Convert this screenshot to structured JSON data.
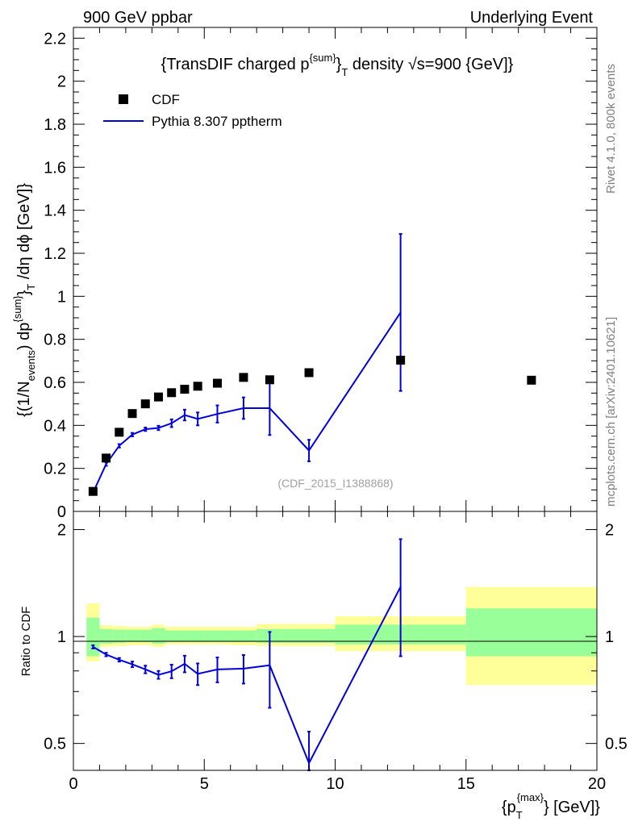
{
  "header": {
    "left": "900 GeV ppbar",
    "right": "Underlying Event"
  },
  "side_labels": {
    "rivet": "Rivet 4.1.0,  800k events",
    "mcplots": "mcplots.cern.ch [arXiv:2401.10621]"
  },
  "title": {
    "pre": "{TransDIF charged p",
    "sup": "{sum}",
    "mid": "}",
    "sub": "T",
    "post": " density √s=900 {GeV]}"
  },
  "watermark": "(CDF_2015_I1388868)",
  "legend": {
    "cdf": "CDF",
    "pythia": "Pythia 8.307 pptherm"
  },
  "y_main_label": {
    "a": "{(1/N",
    "a_sub": "events",
    "b": ") dp",
    "b_sup": "{sum}",
    "c": "}",
    "c_sub": "T",
    "d": " /dη  dϕ [GeV]}"
  },
  "y_ratio_label": "Ratio to CDF",
  "x_label": {
    "pre": "{p",
    "sub": "T",
    "sup": "{max}",
    "post": "} [GeV]}"
  },
  "chart_data": {
    "type": "scatter",
    "xlim": [
      0,
      20
    ],
    "main": {
      "ylim": [
        0,
        2.25
      ],
      "yticks": [
        0,
        0.2,
        0.4,
        0.6,
        0.8,
        1,
        1.2,
        1.4,
        1.6,
        1.8,
        2,
        2.2
      ],
      "ytick_labels": [
        "0",
        "0.2",
        "0.4",
        "0.6",
        "0.8",
        "1",
        "1.2",
        "1.4",
        "1.6",
        "1.8",
        "2",
        "2.2"
      ]
    },
    "ratio": {
      "ylim": [
        0.42,
        2.25
      ],
      "yticks": [
        0.5,
        1,
        2
      ],
      "ytick_labels": [
        "0.5",
        "1",
        "2"
      ]
    },
    "xticks": [
      0,
      5,
      10,
      15,
      20
    ],
    "xtick_labels": [
      "0",
      "5",
      "10",
      "15",
      "20"
    ],
    "series": [
      {
        "name": "CDF",
        "type": "markers",
        "color": "#000000",
        "x": [
          0.75,
          1.25,
          1.75,
          2.25,
          2.75,
          3.25,
          3.75,
          4.25,
          4.75,
          5.5,
          6.5,
          7.5,
          9.0,
          12.5,
          17.5
        ],
        "y": [
          0.093,
          0.248,
          0.368,
          0.455,
          0.5,
          0.532,
          0.552,
          0.568,
          0.582,
          0.596,
          0.623,
          0.612,
          0.645,
          0.703,
          0.61
        ]
      },
      {
        "name": "Pythia 8.307 pptherm",
        "type": "line",
        "color": "#0000dd",
        "x": [
          0.75,
          1.25,
          1.75,
          2.25,
          2.75,
          3.25,
          3.75,
          4.25,
          4.75,
          5.5,
          6.5,
          7.5,
          9.0,
          12.5
        ],
        "y": [
          0.087,
          0.22,
          0.305,
          0.357,
          0.382,
          0.388,
          0.41,
          0.448,
          0.43,
          0.453,
          0.48,
          0.48,
          0.283,
          0.925
        ],
        "yerr": [
          0.005,
          0.008,
          0.008,
          0.008,
          0.008,
          0.01,
          0.018,
          0.025,
          0.03,
          0.04,
          0.05,
          0.125,
          0.05,
          0.365
        ]
      }
    ],
    "ratio_series": {
      "name": "Pythia / CDF",
      "color": "#0000dd",
      "x": [
        0.75,
        1.25,
        1.75,
        2.25,
        2.75,
        3.25,
        3.75,
        4.25,
        4.75,
        5.5,
        6.5,
        7.5,
        9.0,
        12.5
      ],
      "y": [
        0.935,
        0.89,
        0.86,
        0.835,
        0.808,
        0.78,
        0.798,
        0.838,
        0.785,
        0.808,
        0.812,
        0.83,
        0.44,
        1.38
      ],
      "yerr": [
        0.01,
        0.01,
        0.01,
        0.015,
        0.02,
        0.02,
        0.035,
        0.045,
        0.055,
        0.065,
        0.075,
        0.2,
        0.1,
        0.5
      ]
    },
    "bands": [
      {
        "x": [
          0.5,
          1.0
        ],
        "green": [
          0.88,
          1.13
        ],
        "yellow": [
          0.85,
          1.24
        ]
      },
      {
        "x": [
          1.0,
          1.5
        ],
        "green": [
          0.955,
          1.05
        ],
        "yellow": [
          0.935,
          1.075
        ]
      },
      {
        "x": [
          1.5,
          2.0
        ],
        "green": [
          0.96,
          1.045
        ],
        "yellow": [
          0.94,
          1.07
        ]
      },
      {
        "x": [
          2.0,
          2.5
        ],
        "green": [
          0.965,
          1.045
        ],
        "yellow": [
          0.945,
          1.065
        ]
      },
      {
        "x": [
          2.5,
          3.0
        ],
        "green": [
          0.965,
          1.045
        ],
        "yellow": [
          0.945,
          1.065
        ]
      },
      {
        "x": [
          3.0,
          3.5
        ],
        "green": [
          0.955,
          1.055
        ],
        "yellow": [
          0.935,
          1.08
        ]
      },
      {
        "x": [
          3.5,
          4.0
        ],
        "green": [
          0.965,
          1.04
        ],
        "yellow": [
          0.95,
          1.065
        ]
      },
      {
        "x": [
          4.0,
          5.0
        ],
        "green": [
          0.965,
          1.04
        ],
        "yellow": [
          0.95,
          1.065
        ]
      },
      {
        "x": [
          5.0,
          6.0
        ],
        "green": [
          0.965,
          1.04
        ],
        "yellow": [
          0.95,
          1.065
        ]
      },
      {
        "x": [
          6.0,
          7.0
        ],
        "green": [
          0.965,
          1.04
        ],
        "yellow": [
          0.945,
          1.065
        ]
      },
      {
        "x": [
          7.0,
          8.0
        ],
        "green": [
          0.96,
          1.05
        ],
        "yellow": [
          0.94,
          1.085
        ]
      },
      {
        "x": [
          8.0,
          10.0
        ],
        "green": [
          0.96,
          1.05
        ],
        "yellow": [
          0.94,
          1.085
        ]
      },
      {
        "x": [
          10.0,
          15.0
        ],
        "green": [
          0.95,
          1.08
        ],
        "yellow": [
          0.91,
          1.14
        ]
      },
      {
        "x": [
          15.0,
          20.0
        ],
        "green": [
          0.88,
          1.2
        ],
        "yellow": [
          0.73,
          1.38
        ]
      }
    ],
    "colors": {
      "green": "#99ff99",
      "yellow": "#ffff99",
      "data": "#000000",
      "mc": "#0000dd"
    }
  }
}
